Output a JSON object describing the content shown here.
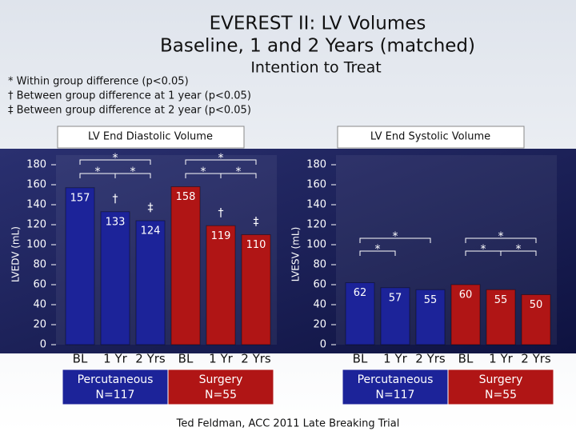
{
  "title": [
    "EVEREST II: LV Volumes",
    "Baseline, 1 and 2 Years (matched)"
  ],
  "subtitle": "Intention to Treat",
  "notes": [
    "* Within group difference (p<0.05)",
    "† Between group difference at 1 year (p<0.05)",
    "‡ Between group difference at 2 year (p<0.05)"
  ],
  "footer": "Ted Feldman, ACC 2011 Late Breaking Trial",
  "chart_data": [
    {
      "type": "bar",
      "title": "LV End Diastolic Volume",
      "ylabel": "LVEDV (mL)",
      "categories": [
        "BL",
        "1 Yr",
        "2 Yrs"
      ],
      "ylim": [
        0,
        180
      ],
      "yticks": [
        0,
        20,
        40,
        60,
        80,
        100,
        120,
        140,
        160,
        180
      ],
      "series": [
        {
          "name": "Percutaneous",
          "n": "N=117",
          "color": "#1c2399",
          "values": [
            157,
            133,
            124
          ],
          "annotations": [
            "*",
            "*",
            "*",
            "†",
            "‡"
          ]
        },
        {
          "name": "Surgery",
          "n": "N=55",
          "color": "#b01515",
          "values": [
            158,
            119,
            110
          ],
          "annotations": [
            "*",
            "*",
            "*",
            "†",
            "‡"
          ]
        }
      ]
    },
    {
      "type": "bar",
      "title": "LV End Systolic Volume",
      "ylabel": "LVESV (mL)",
      "categories": [
        "BL",
        "1 Yr",
        "2 Yrs"
      ],
      "ylim": [
        0,
        180
      ],
      "yticks": [
        0,
        20,
        40,
        60,
        80,
        100,
        120,
        140,
        160,
        180
      ],
      "series": [
        {
          "name": "Percutaneous",
          "n": "N=117",
          "color": "#1c2399",
          "values": [
            62,
            57,
            55
          ],
          "annotations": [
            "*",
            "*"
          ]
        },
        {
          "name": "Surgery",
          "n": "N=55",
          "color": "#b01515",
          "values": [
            60,
            55,
            50
          ],
          "annotations": [
            "*",
            "*",
            "*"
          ]
        }
      ]
    }
  ]
}
